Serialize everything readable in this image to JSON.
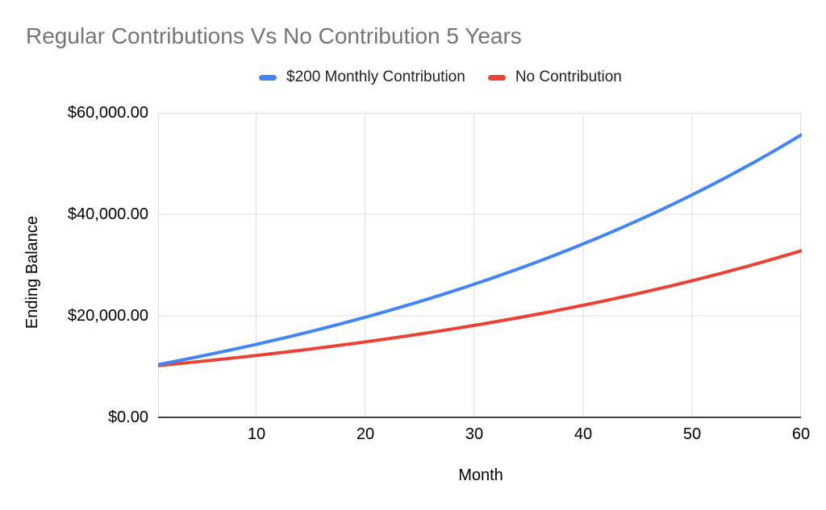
{
  "chart": {
    "title": "Regular Contributions Vs No Contribution 5 Years",
    "title_color": "#757575",
    "legend": {
      "items": [
        {
          "label": "$200 Monthly Contribution",
          "color": "#4285F4"
        },
        {
          "label": "No Contribution",
          "color": "#EA4335"
        }
      ]
    },
    "y_axis": {
      "title": "Ending Balance",
      "tick_labels": [
        "$0.00",
        "$20,000.00",
        "$40,000.00",
        "$60,000.00"
      ]
    },
    "x_axis": {
      "title": "Month",
      "tick_labels": [
        "10",
        "20",
        "30",
        "40",
        "50",
        "60"
      ]
    },
    "colors": {
      "grid": "#e0e0e0",
      "axis_line": "#424242",
      "series_blue": "#4285F4",
      "series_red": "#EA4335"
    }
  },
  "chart_data": {
    "type": "line",
    "title": "Regular Contributions Vs No Contribution 5 Years",
    "xlabel": "Month",
    "ylabel": "Ending Balance",
    "xlim": [
      1,
      60
    ],
    "ylim": [
      0,
      60000
    ],
    "x_ticks": [
      10,
      20,
      30,
      40,
      50,
      60
    ],
    "y_ticks": [
      0,
      20000,
      40000,
      60000
    ],
    "grid": true,
    "legend_position": "top",
    "x": [
      1,
      2,
      3,
      4,
      5,
      6,
      7,
      8,
      9,
      10,
      11,
      12,
      13,
      14,
      15,
      16,
      17,
      18,
      19,
      20,
      21,
      22,
      23,
      24,
      25,
      26,
      27,
      28,
      29,
      30,
      31,
      32,
      33,
      34,
      35,
      36,
      37,
      38,
      39,
      40,
      41,
      42,
      43,
      44,
      45,
      46,
      47,
      48,
      49,
      50,
      51,
      52,
      53,
      54,
      55,
      56,
      57,
      58,
      59,
      60
    ],
    "series": [
      {
        "name": "$200 Monthly Contribution",
        "color": "#4285F4",
        "values": [
          10400.0,
          10808.0,
          11224.16,
          11648.64,
          12081.62,
          12523.25,
          12973.71,
          13433.19,
          13901.85,
          14379.89,
          14867.49,
          15364.84,
          15872.13,
          16389.58,
          16917.37,
          17455.71,
          18004.83,
          18564.92,
          19136.22,
          19718.95,
          20313.33,
          20919.59,
          21537.99,
          22168.75,
          22812.12,
          23468.36,
          24137.73,
          24820.48,
          25516.89,
          26227.23,
          26951.78,
          27690.81,
          28444.63,
          29213.52,
          29997.79,
          30797.75,
          31613.7,
          32445.98,
          33294.9,
          34160.79,
          35044.01,
          35944.89,
          36863.79,
          37801.06,
          38757.08,
          39732.23,
          40726.87,
          41741.41,
          42776.24,
          43831.76,
          44908.44,
          46006.61,
          47126.74,
          48269.27,
          49434.66,
          50623.35,
          51835.82,
          53072.49,
          54333.94,
          55620.62
        ]
      },
      {
        "name": "No Contribution",
        "color": "#EA4335",
        "values": [
          10200.0,
          10404.0,
          10612.08,
          10824.32,
          11040.81,
          11261.62,
          11486.86,
          11716.59,
          11950.93,
          12189.94,
          12433.74,
          12682.42,
          12936.07,
          13194.79,
          13458.68,
          13727.86,
          14002.41,
          14282.46,
          14568.11,
          14859.47,
          15156.66,
          15459.8,
          15768.99,
          16084.37,
          16406.06,
          16734.18,
          17068.86,
          17410.24,
          17758.45,
          18113.62,
          18475.89,
          18845.41,
          19222.31,
          19606.76,
          19998.9,
          20398.87,
          20806.85,
          21222.99,
          21647.45,
          22080.4,
          22522.0,
          22972.44,
          23431.89,
          23900.53,
          24378.54,
          24866.11,
          25363.44,
          25870.7,
          26388.12,
          26915.88,
          27454.22,
          28003.3,
          28563.37,
          29134.64,
          29717.33,
          30311.68,
          30917.91,
          31536.25,
          32166.97,
          32810.31
        ]
      }
    ]
  }
}
